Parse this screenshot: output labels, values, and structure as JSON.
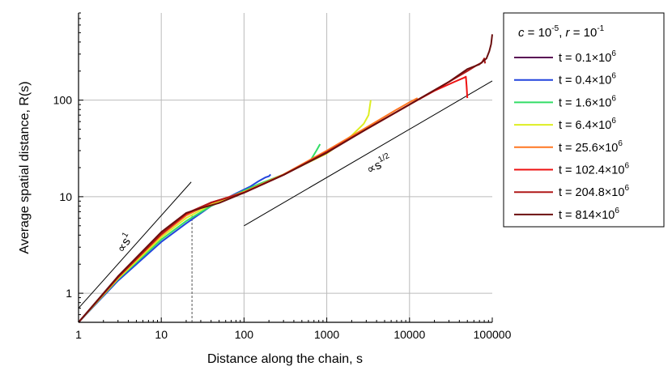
{
  "chart_data": {
    "type": "line",
    "xlabel": "Distance along the chain, s",
    "ylabel": "Average spatial distance, R(s)",
    "xscale": "log",
    "yscale": "log",
    "xlim": [
      1,
      100000
    ],
    "ylim": [
      0.5,
      800
    ],
    "x_ticks": [
      1,
      10,
      100,
      1000,
      10000,
      100000
    ],
    "x_tick_labels": [
      "1",
      "10",
      "100",
      "1000",
      "10000",
      "100000"
    ],
    "y_ticks": [
      1,
      10,
      100
    ],
    "y_tick_labels": [
      "1",
      "10",
      "100"
    ],
    "grid": true,
    "legend": {
      "placement": "right",
      "title": {
        "c_var": "c",
        "c_eq": " = 10",
        "c_exp": "-5",
        "sep": ", ",
        "r_var": "r",
        "r_eq": " = 10",
        "r_exp": "-1"
      }
    },
    "series": [
      {
        "name": "t = 0.1×10",
        "name_exp": "6",
        "color": "#5a0a55",
        "points": [
          [
            1,
            0.5
          ],
          [
            3,
            1.45
          ],
          [
            10,
            4.0
          ],
          [
            20,
            6.4
          ],
          [
            40,
            8.6
          ],
          [
            60,
            9.6
          ],
          [
            80,
            10.4
          ],
          [
            100,
            11.0
          ]
        ]
      },
      {
        "name": "t = 0.4×10",
        "name_exp": "6",
        "color": "#2244dd",
        "points": [
          [
            1,
            0.5
          ],
          [
            3,
            1.35
          ],
          [
            10,
            3.4
          ],
          [
            20,
            5.3
          ],
          [
            40,
            8.0
          ],
          [
            80,
            10.8
          ],
          [
            120,
            12.8
          ],
          [
            150,
            14.5
          ],
          [
            180,
            15.8
          ],
          [
            200,
            16.3
          ],
          [
            210,
            17.0
          ]
        ]
      },
      {
        "name": "t = 1.6×10",
        "name_exp": "6",
        "color": "#33dd66",
        "points": [
          [
            1,
            0.5
          ],
          [
            3,
            1.4
          ],
          [
            10,
            3.6
          ],
          [
            20,
            5.6
          ],
          [
            40,
            8.0
          ],
          [
            80,
            10.6
          ],
          [
            150,
            13.5
          ],
          [
            300,
            17.0
          ],
          [
            500,
            21.0
          ],
          [
            650,
            24.5
          ],
          [
            750,
            30.0
          ],
          [
            830,
            35.0
          ]
        ]
      },
      {
        "name": "t = 6.4×10",
        "name_exp": "6",
        "color": "#ddee22",
        "points": [
          [
            1,
            0.5
          ],
          [
            3,
            1.42
          ],
          [
            10,
            3.8
          ],
          [
            20,
            6.0
          ],
          [
            40,
            8.3
          ],
          [
            100,
            11.2
          ],
          [
            300,
            17.0
          ],
          [
            1000,
            28.0
          ],
          [
            2000,
            43.0
          ],
          [
            2800,
            57.0
          ],
          [
            3200,
            70.0
          ],
          [
            3400,
            100.0
          ]
        ]
      },
      {
        "name": "t = 25.6×10",
        "name_exp": "6",
        "color": "#ff7722",
        "points": [
          [
            1,
            0.5
          ],
          [
            3,
            1.45
          ],
          [
            10,
            4.0
          ],
          [
            20,
            6.4
          ],
          [
            40,
            8.6
          ],
          [
            100,
            11.2
          ],
          [
            300,
            17.0
          ],
          [
            1000,
            30.0
          ],
          [
            3000,
            52.0
          ],
          [
            7000,
            80.0
          ],
          [
            10000,
            95.0
          ],
          [
            12500,
            105.0
          ]
        ]
      },
      {
        "name": "t = 102.4×10",
        "name_exp": "6",
        "color": "#ee1111",
        "points": [
          [
            1,
            0.5
          ],
          [
            3,
            1.47
          ],
          [
            10,
            4.1
          ],
          [
            20,
            6.6
          ],
          [
            40,
            8.7
          ],
          [
            100,
            11.0
          ],
          [
            300,
            16.8
          ],
          [
            1000,
            29.0
          ],
          [
            3000,
            50.0
          ],
          [
            10000,
            90.0
          ],
          [
            20000,
            125.0
          ],
          [
            35000,
            155.0
          ],
          [
            45000,
            170.0
          ],
          [
            48000,
            175.0
          ],
          [
            49000,
            140.0
          ],
          [
            50000,
            105.0
          ]
        ]
      },
      {
        "name": "t = 204.8×10",
        "name_exp": "6",
        "color": "#b01818",
        "points": [
          [
            1,
            0.5
          ],
          [
            3,
            1.47
          ],
          [
            10,
            4.1
          ],
          [
            20,
            6.7
          ],
          [
            40,
            8.7
          ],
          [
            100,
            11.0
          ],
          [
            300,
            16.8
          ],
          [
            1000,
            29.0
          ],
          [
            3000,
            50.0
          ],
          [
            10000,
            90.0
          ],
          [
            30000,
            155.0
          ],
          [
            50000,
            200.0
          ],
          [
            65000,
            230.0
          ],
          [
            75000,
            245.0
          ],
          [
            80000,
            270.0
          ],
          [
            82000,
            240.0
          ]
        ]
      },
      {
        "name": "t = 814×10",
        "name_exp": "6",
        "color": "#6b0f0f",
        "points": [
          [
            1,
            0.5
          ],
          [
            3,
            1.5
          ],
          [
            10,
            4.3
          ],
          [
            20,
            6.8
          ],
          [
            30,
            7.6
          ],
          [
            50,
            8.6
          ],
          [
            100,
            11.0
          ],
          [
            300,
            16.8
          ],
          [
            1000,
            28.5
          ],
          [
            3000,
            50.0
          ],
          [
            10000,
            90.0
          ],
          [
            30000,
            155.0
          ],
          [
            50000,
            210.0
          ],
          [
            70000,
            235.0
          ],
          [
            85000,
            270.0
          ],
          [
            92000,
            320.0
          ],
          [
            97000,
            380.0
          ],
          [
            100000,
            480.0
          ]
        ]
      }
    ],
    "reference_lines": [
      {
        "label_var": "∝s",
        "label_exp": "1",
        "points": [
          [
            1,
            0.7
          ],
          [
            23,
            14.2
          ]
        ]
      },
      {
        "label_var": "∝s",
        "label_exp": "1/2",
        "points": [
          [
            100,
            5.0
          ],
          [
            100000,
            158.0
          ]
        ]
      }
    ],
    "marker_line": {
      "x": 23.5,
      "y_from": 0.5,
      "y_to": 6.5
    }
  }
}
